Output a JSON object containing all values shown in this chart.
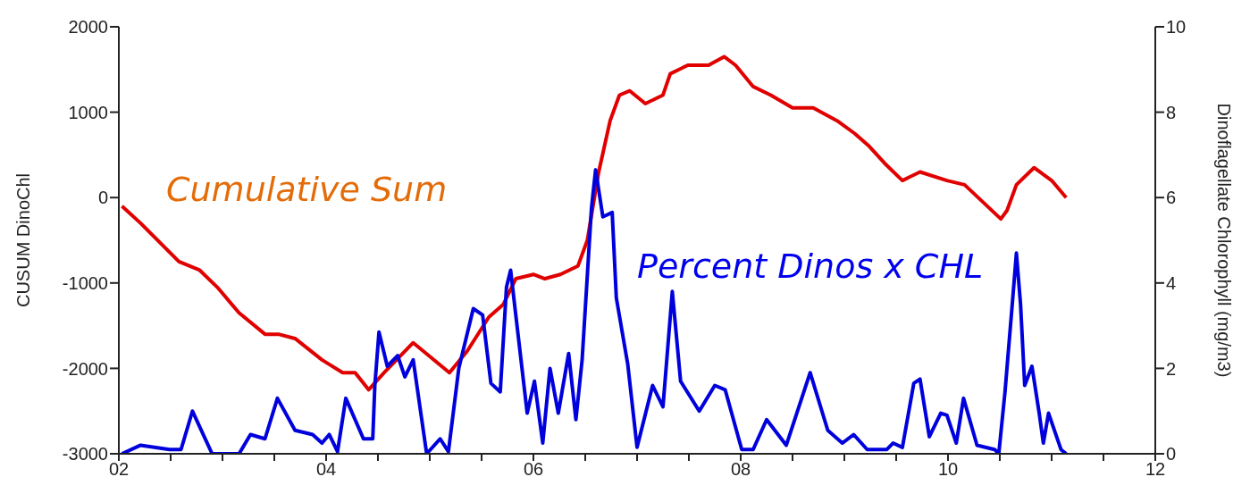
{
  "chart_data": {
    "type": "line",
    "xlabel": null,
    "ylabel": "CUSUM DinoChl",
    "y2label": "Dinoflagellate Chlorophyll (mg/m3)",
    "annotations": [
      "Cumulative Sum",
      "Percent Dinos x CHL"
    ],
    "xlim": [
      2,
      12
    ],
    "xticks": [
      {
        "value": 2,
        "label": "02"
      },
      {
        "value": 2.5,
        "label": null
      },
      {
        "value": 3,
        "label": null
      },
      {
        "value": 3.5,
        "label": null
      },
      {
        "value": 4,
        "label": "04"
      },
      {
        "value": 4.5,
        "label": null
      },
      {
        "value": 5,
        "label": null
      },
      {
        "value": 5.5,
        "label": null
      },
      {
        "value": 6,
        "label": "06"
      },
      {
        "value": 6.5,
        "label": null
      },
      {
        "value": 7,
        "label": null
      },
      {
        "value": 7.5,
        "label": null
      },
      {
        "value": 8,
        "label": "08"
      },
      {
        "value": 8.5,
        "label": null
      },
      {
        "value": 9,
        "label": null
      },
      {
        "value": 9.5,
        "label": null
      },
      {
        "value": 10,
        "label": "10"
      },
      {
        "value": 10.5,
        "label": null
      },
      {
        "value": 11,
        "label": null
      },
      {
        "value": 11.5,
        "label": null
      },
      {
        "value": 12,
        "label": "12"
      }
    ],
    "ylim": [
      -3000,
      2000
    ],
    "yticks": [
      -3000,
      -2000,
      -1000,
      0,
      1000,
      2000
    ],
    "y2lim": [
      0,
      10
    ],
    "y2ticks": [
      0,
      2,
      4,
      6,
      8,
      10
    ],
    "grid": false,
    "legend": false,
    "marker": "none",
    "line_style": "solid",
    "series": [
      {
        "color": "#e00000",
        "x": [
          2.03,
          2.21,
          2.58,
          2.78,
          2.95,
          3.16,
          3.41,
          3.54,
          3.7,
          3.96,
          4.16,
          4.28,
          4.41,
          4.56,
          4.84,
          5.19,
          5.36,
          5.57,
          5.71,
          5.83,
          6.0,
          6.11,
          6.26,
          6.43,
          6.52,
          6.63,
          6.74,
          6.83,
          6.93,
          7.08,
          7.25,
          7.32,
          7.49,
          7.69,
          7.84,
          7.95,
          8.12,
          8.29,
          8.5,
          8.7,
          8.93,
          9.1,
          9.24,
          9.39,
          9.56,
          9.73,
          9.99,
          10.16,
          10.51,
          10.57,
          10.66,
          10.83,
          11.0,
          11.14
        ],
        "values": [
          -100,
          -300,
          -750,
          -850,
          -1050,
          -1350,
          -1600,
          -1600,
          -1650,
          -1900,
          -2050,
          -2050,
          -2250,
          -2050,
          -1700,
          -2050,
          -1800,
          -1400,
          -1250,
          -950,
          -900,
          -950,
          -900,
          -800,
          -500,
          300,
          900,
          1200,
          1250,
          1100,
          1200,
          1450,
          1550,
          1550,
          1650,
          1550,
          1300,
          1200,
          1050,
          1050,
          900,
          750,
          600,
          400,
          200,
          300,
          200,
          150,
          -250,
          -150,
          150,
          350,
          200,
          0
        ]
      },
      {
        "color": "#0000dd",
        "axis": "y2",
        "x": [
          2.03,
          2.21,
          2.49,
          2.6,
          2.71,
          2.9,
          3.16,
          3.27,
          3.41,
          3.53,
          3.7,
          3.87,
          3.96,
          4.03,
          4.11,
          4.19,
          4.36,
          4.45,
          4.47,
          4.51,
          4.59,
          4.69,
          4.76,
          4.84,
          4.97,
          5.1,
          5.18,
          5.28,
          5.42,
          5.51,
          5.59,
          5.68,
          5.74,
          5.78,
          5.83,
          5.94,
          6.01,
          6.09,
          6.16,
          6.24,
          6.34,
          6.41,
          6.47,
          6.56,
          6.6,
          6.67,
          6.76,
          6.8,
          6.91,
          7.0,
          7.15,
          7.25,
          7.34,
          7.42,
          7.6,
          7.75,
          7.85,
          8.01,
          8.12,
          8.25,
          8.44,
          8.67,
          8.84,
          8.98,
          9.09,
          9.22,
          9.41,
          9.47,
          9.56,
          9.67,
          9.73,
          9.82,
          9.93,
          9.99,
          10.08,
          10.15,
          10.28,
          10.45,
          10.49,
          10.55,
          10.62,
          10.66,
          10.7,
          10.74,
          10.81,
          10.88,
          10.92,
          10.97,
          11.09,
          11.14
        ],
        "values": [
          0,
          0.2,
          0.1,
          0.1,
          1.0,
          0,
          0,
          0.45,
          0.35,
          1.3,
          0.55,
          0.45,
          0.25,
          0.45,
          0.05,
          1.3,
          0.35,
          0.35,
          1.6,
          2.85,
          2.05,
          2.3,
          1.8,
          2.2,
          0,
          0.35,
          0.05,
          2.0,
          3.4,
          3.25,
          1.65,
          1.45,
          3.9,
          4.3,
          3.25,
          0.95,
          1.7,
          0.25,
          2.0,
          0.95,
          2.35,
          0.8,
          2.2,
          5.75,
          6.65,
          5.55,
          5.65,
          3.65,
          2.1,
          0.15,
          1.6,
          1.1,
          3.8,
          1.7,
          1.0,
          1.6,
          1.5,
          0.1,
          0.1,
          0.8,
          0.2,
          1.9,
          0.55,
          0.25,
          0.45,
          0.1,
          0.1,
          0.25,
          0.15,
          1.65,
          1.75,
          0.4,
          0.95,
          0.9,
          0.25,
          1.3,
          0.2,
          0.1,
          0,
          1.45,
          3.5,
          4.7,
          3.5,
          1.6,
          2.05,
          0.95,
          0.25,
          0.95,
          0.1,
          0
        ]
      }
    ]
  }
}
